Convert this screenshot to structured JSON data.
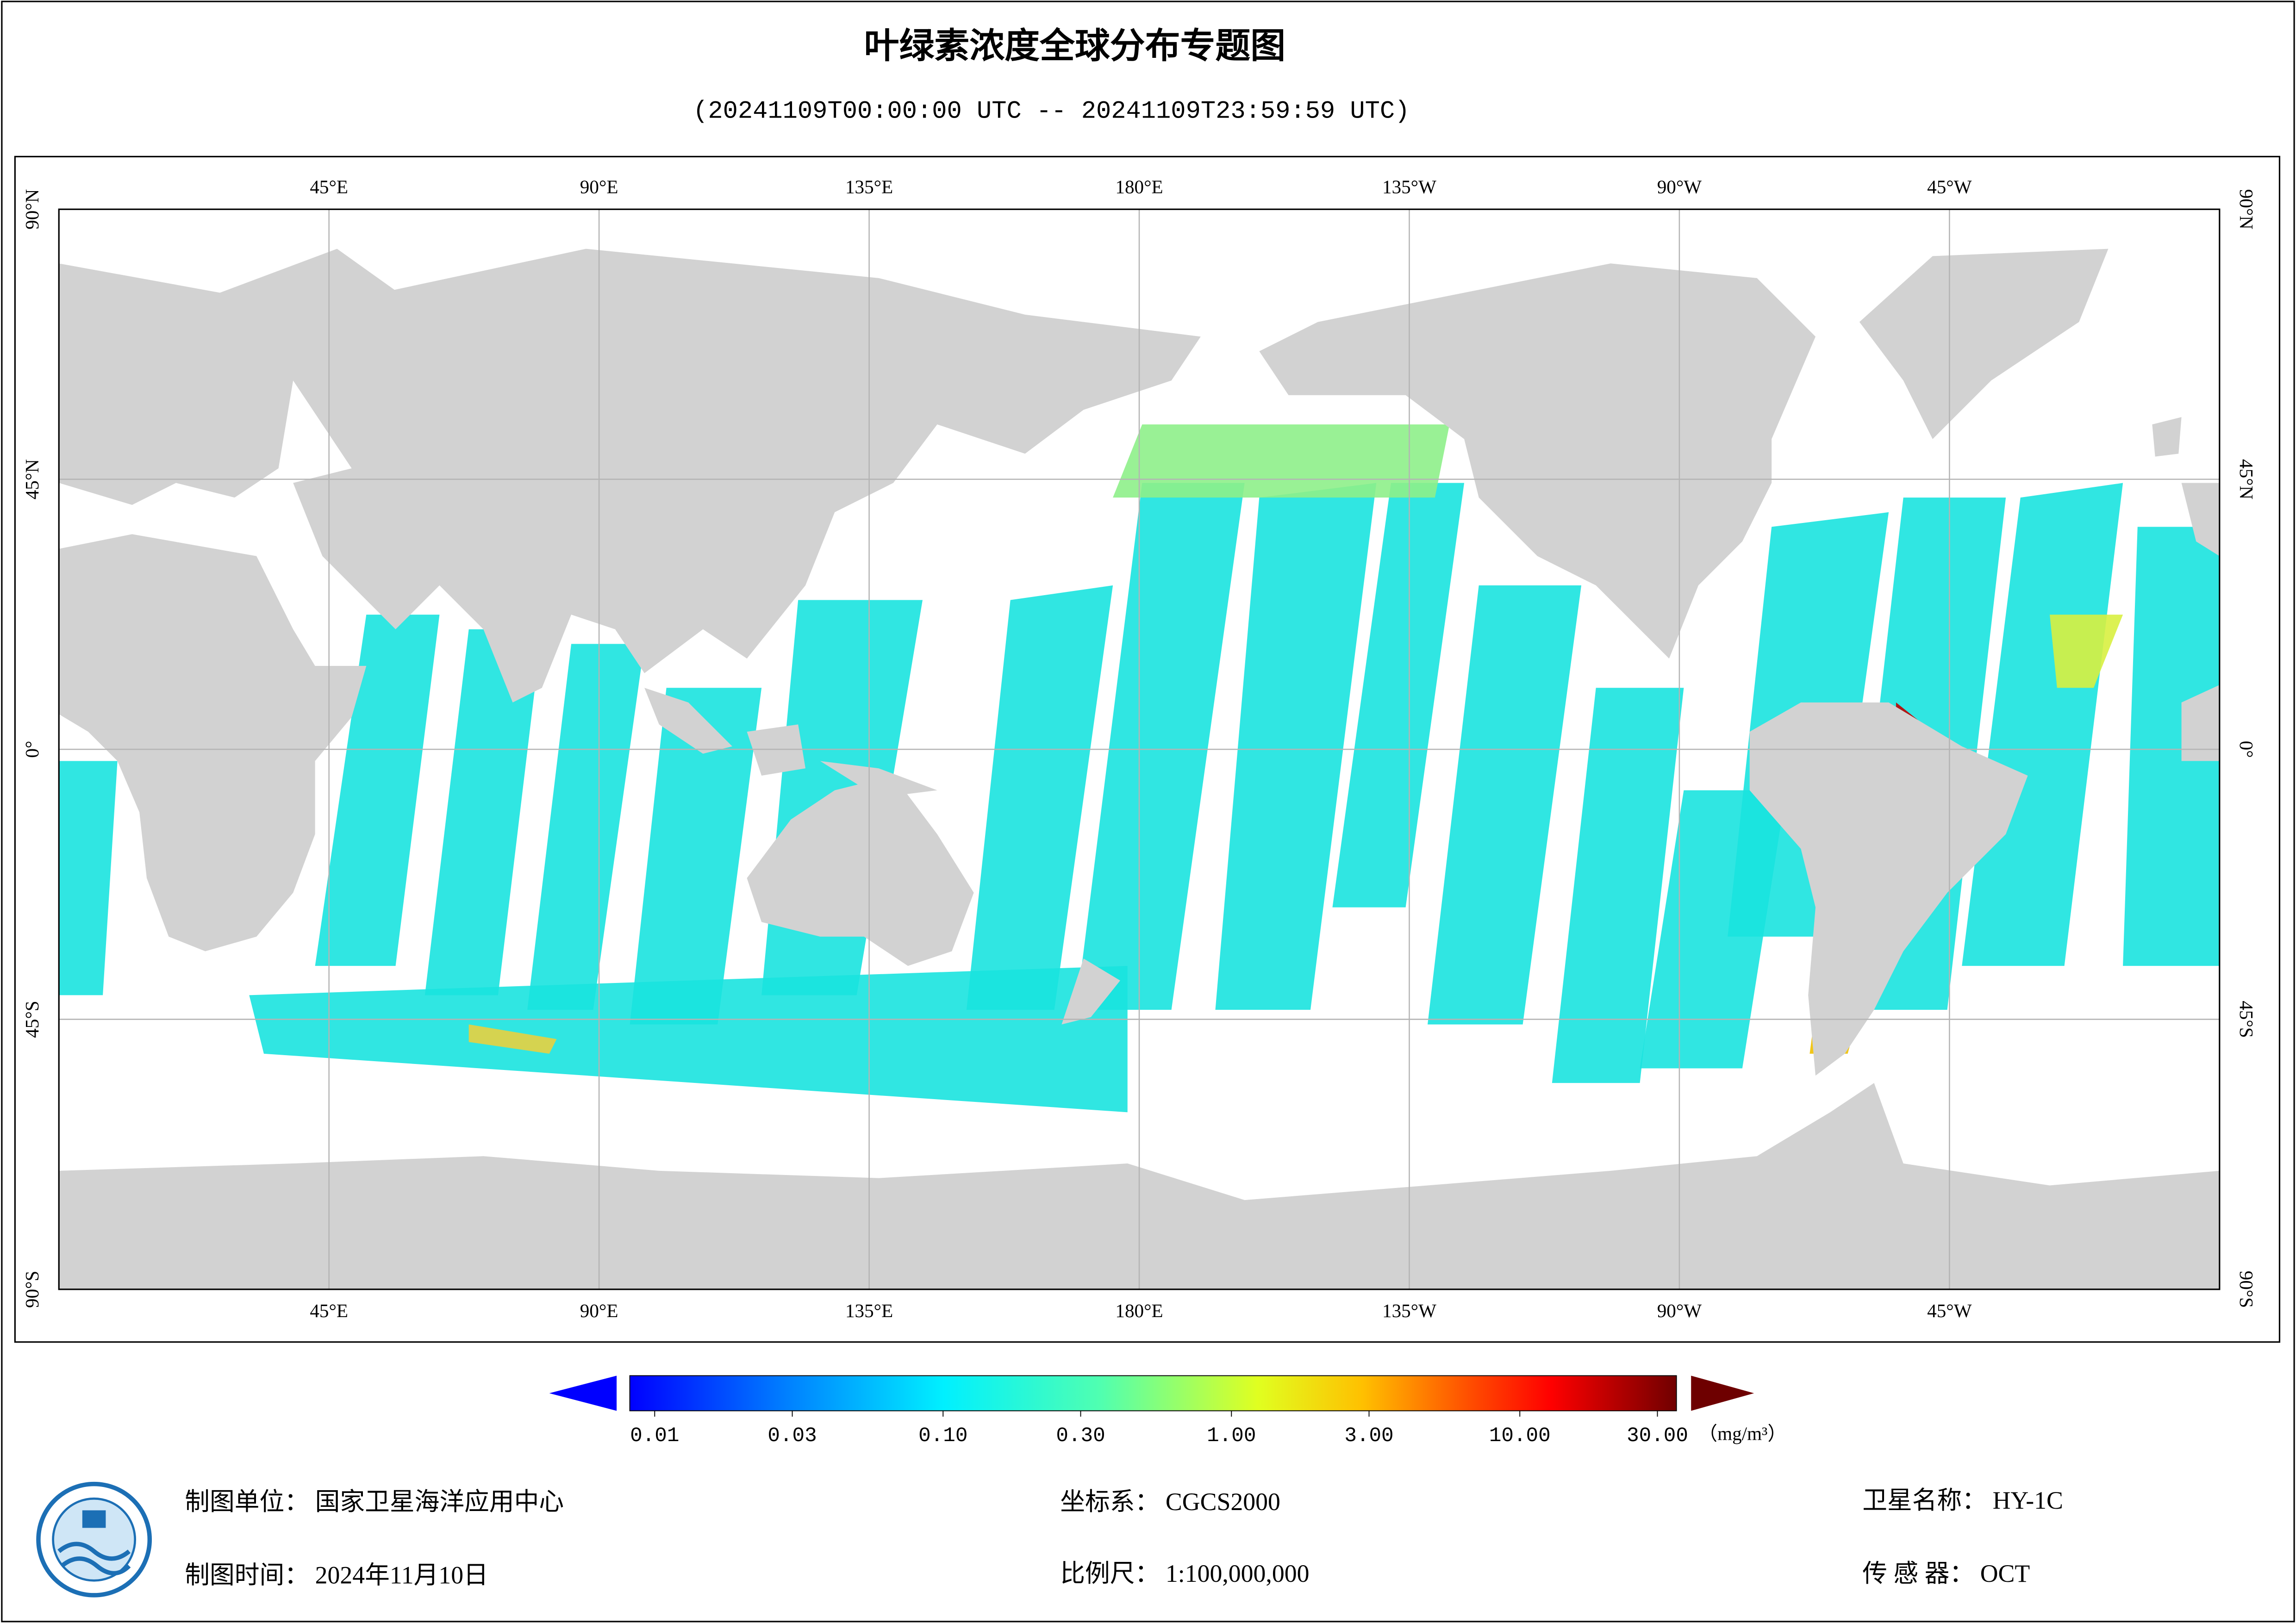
{
  "header": {
    "title": "叶绿素浓度全球分布专题图",
    "subtitle": "(20241109T00:00:00 UTC -- 20241109T23:59:59 UTC)"
  },
  "map": {
    "lon_range": [
      0,
      360
    ],
    "lat_range": [
      -90,
      90
    ],
    "lon_ticks": [
      {
        "value": 45,
        "label": "45°E"
      },
      {
        "value": 90,
        "label": "90°E"
      },
      {
        "value": 135,
        "label": "135°E"
      },
      {
        "value": 180,
        "label": "180°E"
      },
      {
        "value": 225,
        "label": "135°W"
      },
      {
        "value": 270,
        "label": "90°W"
      },
      {
        "value": 315,
        "label": "45°W"
      }
    ],
    "lat_ticks": [
      {
        "value": 90,
        "label": "90°N"
      },
      {
        "value": 45,
        "label": "45°N"
      },
      {
        "value": 0,
        "label": "0°"
      },
      {
        "value": -45,
        "label": "45°S"
      },
      {
        "value": -90,
        "label": "90°S"
      }
    ]
  },
  "colorbar": {
    "scale": "log",
    "ticks": [
      {
        "value": 0.01,
        "label": "0.01"
      },
      {
        "value": 0.03,
        "label": "0.03"
      },
      {
        "value": 0.1,
        "label": "0.10"
      },
      {
        "value": 0.3,
        "label": "0.30"
      },
      {
        "value": 1,
        "label": "1.00"
      },
      {
        "value": 3,
        "label": "3.00"
      },
      {
        "value": 10,
        "label": "10.00"
      },
      {
        "value": 30,
        "label": "30.00"
      }
    ],
    "unit": "（mg/m³）"
  },
  "footer": {
    "items": [
      {
        "label": "制图单位：",
        "value": "国家卫星海洋应用中心"
      },
      {
        "label": "坐标系：",
        "value": "CGCS2000"
      },
      {
        "label": "卫星名称：",
        "value": "HY-1C"
      },
      {
        "label": "制图时间：",
        "value": "2024年11月10日"
      },
      {
        "label": "比例尺：",
        "value": "1:100,000,000"
      },
      {
        "label": "传 感 器：",
        "value": "OCT"
      }
    ]
  }
}
